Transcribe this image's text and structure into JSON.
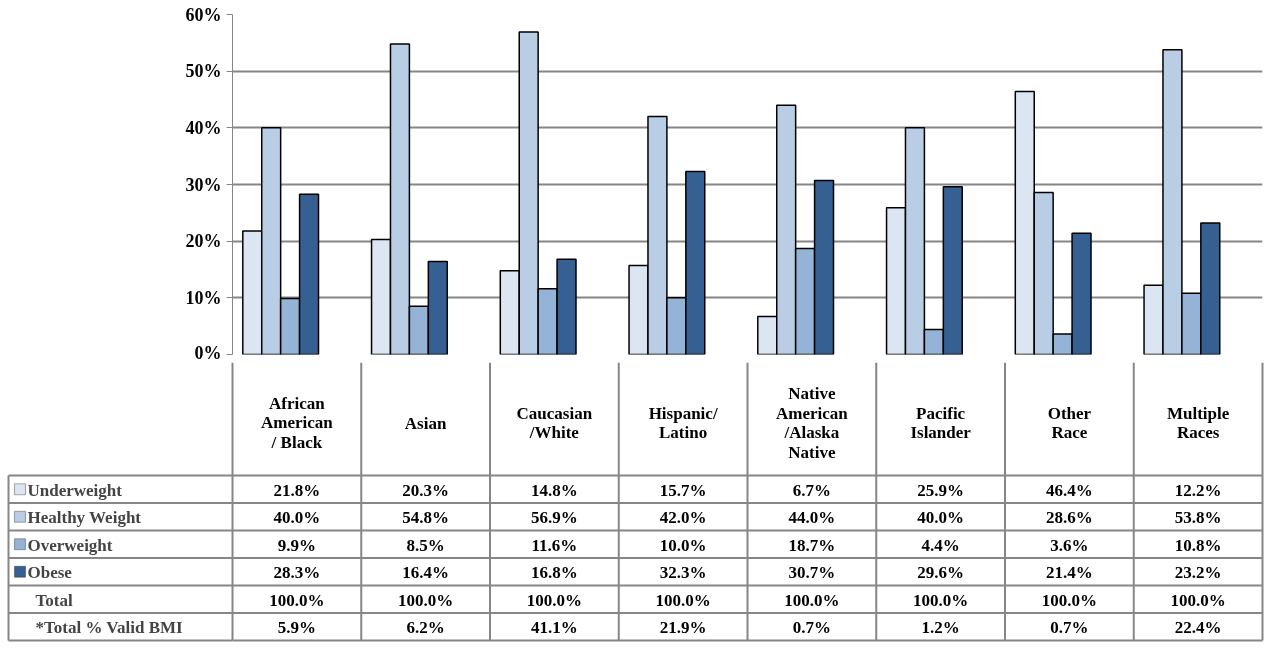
{
  "chart_data": {
    "type": "bar",
    "categories": [
      "African American / Black",
      "Asian",
      "Caucasian /White",
      "Hispanic/ Latino",
      "Native American /Alaska Native",
      "Pacific Islander",
      "Other Race",
      "Multiple Races"
    ],
    "series": [
      {
        "name": "Underweight",
        "color": "#dce6f2",
        "values": [
          21.8,
          20.3,
          14.8,
          15.7,
          6.7,
          25.9,
          46.4,
          12.2
        ],
        "value_labels": [
          "21.8%",
          "20.3%",
          "14.8%",
          "15.7%",
          "6.7%",
          "25.9%",
          "46.4%",
          "12.2%"
        ]
      },
      {
        "name": "Healthy Weight",
        "color": "#b9cde5",
        "values": [
          40.0,
          54.8,
          56.9,
          42.0,
          44.0,
          40.0,
          28.6,
          53.8
        ],
        "value_labels": [
          "40.0%",
          "54.8%",
          "56.9%",
          "42.0%",
          "44.0%",
          "40.0%",
          "28.6%",
          "53.8%"
        ]
      },
      {
        "name": "Overweight",
        "color": "#95b3d7",
        "values": [
          9.9,
          8.5,
          11.6,
          10.0,
          18.7,
          4.4,
          3.6,
          10.8
        ],
        "value_labels": [
          "9.9%",
          "8.5%",
          "11.6%",
          "10.0%",
          "18.7%",
          "4.4%",
          "3.6%",
          "10.8%"
        ]
      },
      {
        "name": "Obese",
        "color": "#376092",
        "values": [
          28.3,
          16.4,
          16.8,
          32.3,
          30.7,
          29.6,
          21.4,
          23.2
        ],
        "value_labels": [
          "28.3%",
          "16.4%",
          "16.8%",
          "32.3%",
          "30.7%",
          "29.6%",
          "21.4%",
          "23.2%"
        ]
      }
    ],
    "annotations": [
      "Total",
      "100.0%",
      "100.0%",
      "100.0%",
      "100.0%",
      "100.0%",
      "100.0%",
      "100.0%",
      "100.0%",
      "*Total % Valid BMI",
      "5.9%",
      "6.2%",
      "41.1%",
      "21.9%",
      "0.7%",
      "1.2%",
      "0.7%",
      "22.4%"
    ],
    "ylim": [
      0,
      60
    ],
    "yticks": [
      {
        "value": 0,
        "label": "0%"
      },
      {
        "value": 10,
        "label": "10%"
      },
      {
        "value": 20,
        "label": "20%"
      },
      {
        "value": 30,
        "label": "30%"
      },
      {
        "value": 40,
        "label": "40%"
      },
      {
        "value": 50,
        "label": "50%"
      },
      {
        "value": 60,
        "label": "60%"
      }
    ],
    "grid": "y",
    "legend": "bottom"
  }
}
